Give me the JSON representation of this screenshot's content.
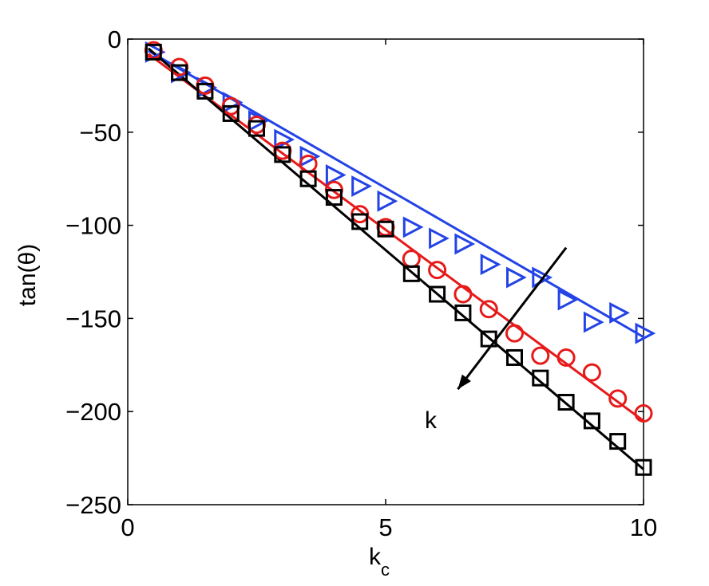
{
  "chart_data": {
    "type": "scatter",
    "xlabel": "k",
    "xlabel_sub": "c",
    "ylabel": "tan(θ)",
    "xlim": [
      0,
      10
    ],
    "ylim": [
      -250,
      0
    ],
    "xticks": [
      "0",
      "5",
      "10"
    ],
    "yticks": [
      "0",
      "−50",
      "−100",
      "−150",
      "−200",
      "−250"
    ],
    "xtick_values": [
      0,
      5,
      10
    ],
    "ytick_values": [
      0,
      -50,
      -100,
      -150,
      -200,
      -250
    ],
    "grid": false,
    "annotation": {
      "text": "k",
      "arrow_from": [
        8.5,
        -112
      ],
      "arrow_to": [
        6.4,
        -188
      ]
    },
    "series": [
      {
        "marker": "triangle-right",
        "color": "#2343e6",
        "x": [
          0.5,
          1,
          1.5,
          2,
          2.5,
          3,
          3.5,
          4,
          4.5,
          5,
          5.5,
          6,
          6.5,
          7,
          7.5,
          8,
          8.5,
          9,
          9.5,
          10
        ],
        "y": [
          -7,
          -18,
          -26,
          -34,
          -44,
          -54,
          -63,
          -73,
          -79,
          -87,
          -101,
          -107,
          -110,
          -121,
          -128,
          -128,
          -140,
          -152,
          -147,
          -158
        ],
        "fit": {
          "x": [
            0.4,
            10
          ],
          "y": [
            -6.3,
            -160
          ]
        }
      },
      {
        "marker": "circle",
        "color": "#e61a1a",
        "x": [
          0.5,
          1,
          1.5,
          2,
          2.5,
          3,
          3.5,
          4,
          4.5,
          5,
          5.5,
          6,
          6.5,
          7,
          7.5,
          8,
          8.5,
          9,
          9.5,
          10
        ],
        "y": [
          -6,
          -15,
          -25,
          -36,
          -46,
          -60,
          -67,
          -81,
          -94,
          -101,
          -118,
          -124,
          -137,
          -145,
          -158,
          -170,
          -171,
          -179,
          -193,
          -201
        ],
        "fit": {
          "x": [
            0.4,
            10
          ],
          "y": [
            -8,
            -205
          ]
        }
      },
      {
        "marker": "square",
        "color": "#000000",
        "x": [
          0.5,
          1,
          1.5,
          2,
          2.5,
          3,
          3.5,
          4,
          4.5,
          5,
          5.5,
          6,
          6.5,
          7,
          7.5,
          8,
          8.5,
          9,
          9.5,
          10
        ],
        "y": [
          -7,
          -18,
          -28,
          -40,
          -48,
          -62,
          -75,
          -85,
          -98,
          -102,
          -126,
          -137,
          -147,
          -161,
          -171,
          -182,
          -195,
          -205,
          -216,
          -230
        ],
        "fit": {
          "x": [
            0.4,
            10
          ],
          "y": [
            -5,
            -231
          ]
        }
      }
    ]
  }
}
